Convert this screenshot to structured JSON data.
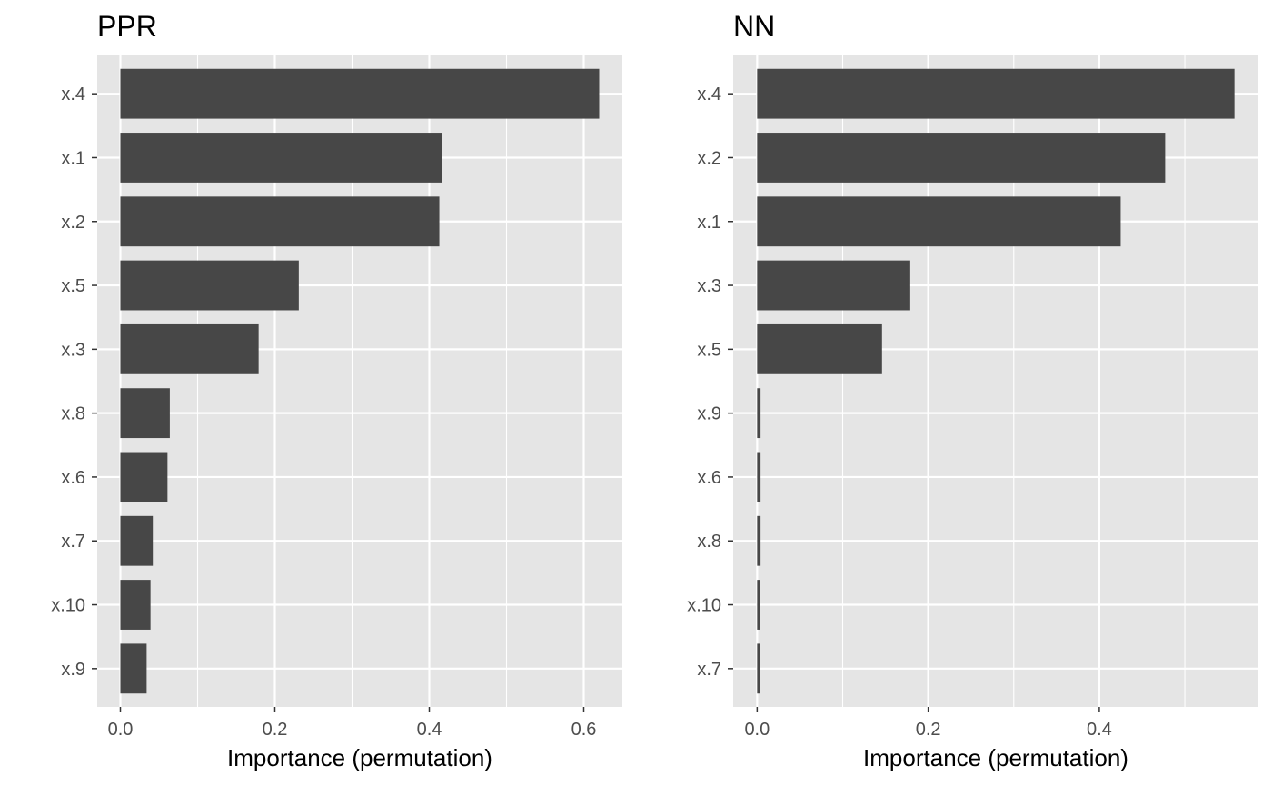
{
  "chart_data": [
    {
      "type": "bar",
      "orientation": "horizontal",
      "title": "PPR",
      "xlabel": "Importance (permutation)",
      "ylabel": "",
      "xlim": [
        -0.03,
        0.65
      ],
      "xticks": [
        0.0,
        0.2,
        0.4,
        0.6
      ],
      "xtick_labels": [
        "0.0",
        "0.2",
        "0.4",
        "0.6"
      ],
      "categories": [
        "x.4",
        "x.1",
        "x.2",
        "x.5",
        "x.3",
        "x.8",
        "x.6",
        "x.7",
        "x.10",
        "x.9"
      ],
      "values": [
        0.62,
        0.417,
        0.413,
        0.231,
        0.179,
        0.064,
        0.061,
        0.042,
        0.039,
        0.034
      ],
      "grid": true
    },
    {
      "type": "bar",
      "orientation": "horizontal",
      "title": "NN",
      "xlabel": "Importance (permutation)",
      "ylabel": "",
      "xlim": [
        -0.028,
        0.586
      ],
      "xticks": [
        0.0,
        0.2,
        0.4
      ],
      "xtick_labels": [
        "0.0",
        "0.2",
        "0.4"
      ],
      "categories": [
        "x.4",
        "x.2",
        "x.1",
        "x.3",
        "x.5",
        "x.9",
        "x.6",
        "x.8",
        "x.10",
        "x.7"
      ],
      "values": [
        0.558,
        0.477,
        0.425,
        0.179,
        0.146,
        0.004,
        0.004,
        0.004,
        0.003,
        0.003
      ],
      "grid": true
    }
  ],
  "colors": {
    "panel_background": "#e5e5e5",
    "grid": "#ffffff",
    "bar_fill": "#474747",
    "tick_text": "#4d4d4d",
    "title_text": "#000000"
  }
}
